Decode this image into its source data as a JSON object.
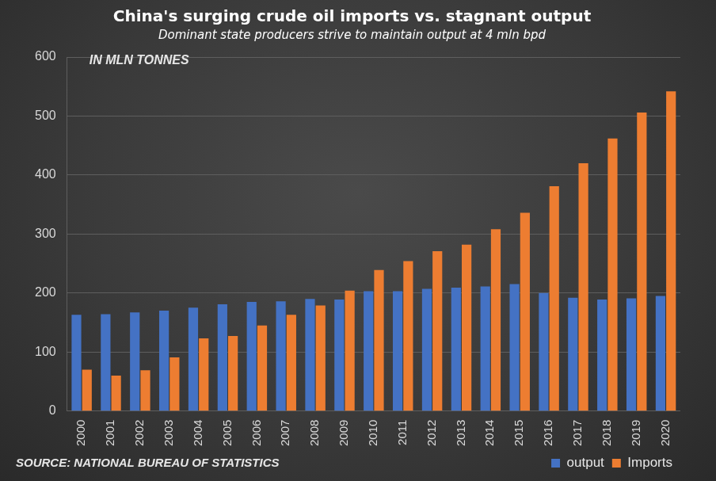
{
  "chart_data": {
    "type": "bar",
    "title": "China's surging crude oil imports vs. stagnant output",
    "subtitle": "Dominant state producers strive to maintain output at 4 mln bpd",
    "annotation": "IN MLN TONNES",
    "source": "SOURCE: NATIONAL BUREAU OF STATISTICS",
    "categories": [
      "2000",
      "2001",
      "2002",
      "2003",
      "2004",
      "2005",
      "2006",
      "2007",
      "2008",
      "2009",
      "2010",
      "2011",
      "2012",
      "2013",
      "2014",
      "2015",
      "2016",
      "2017",
      "2018",
      "2019",
      "2020"
    ],
    "series": [
      {
        "name": "output",
        "color": "#4472c4",
        "values": [
          163,
          164,
          167,
          170,
          175,
          181,
          185,
          186,
          190,
          189,
          203,
          203,
          207,
          209,
          211,
          215,
          200,
          192,
          189,
          191,
          195
        ]
      },
      {
        "name": "Imports",
        "color": "#ed7d31",
        "values": [
          70,
          60,
          69,
          91,
          123,
          127,
          145,
          163,
          179,
          204,
          239,
          254,
          271,
          282,
          308,
          336,
          381,
          420,
          462,
          506,
          542
        ]
      }
    ],
    "ylim": [
      0,
      600
    ],
    "yticks": [
      0,
      100,
      200,
      300,
      400,
      500,
      600
    ],
    "grid": true,
    "legend": "bottom-right"
  }
}
